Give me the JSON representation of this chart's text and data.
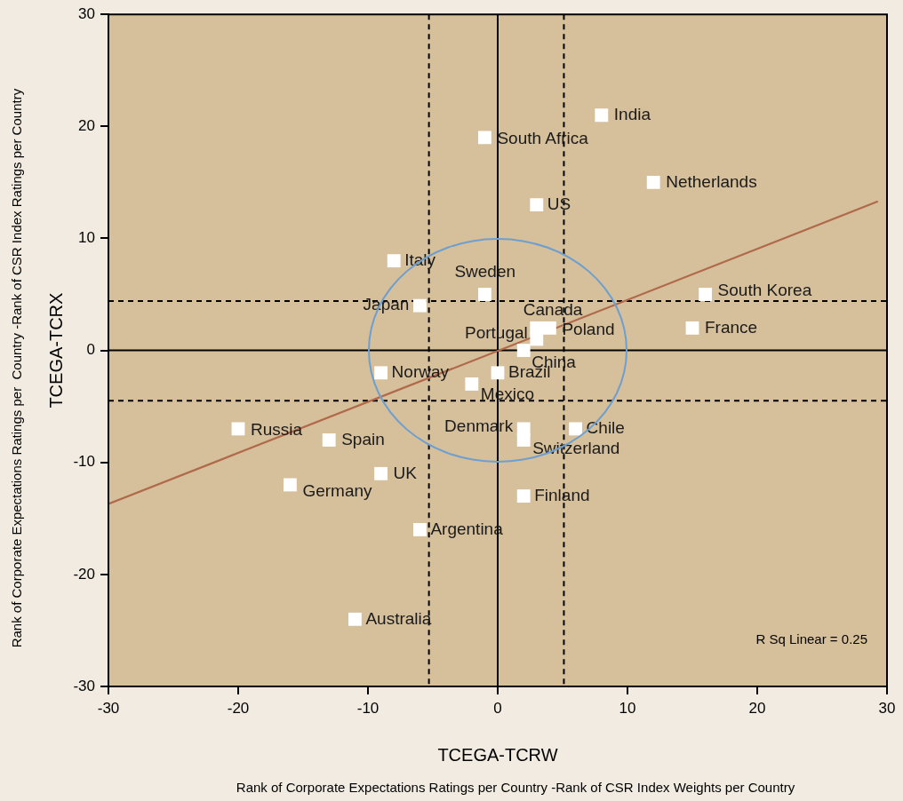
{
  "chart_data": {
    "type": "scatter",
    "xlabel": "TCEGA-TCRW",
    "ylabel": "TCEGA-TCRX",
    "xlim": [
      -30,
      30
    ],
    "xticks": [
      -30,
      -20,
      -10,
      0,
      10,
      20,
      30
    ],
    "ylim": [
      -30,
      30
    ],
    "yticks": [
      -30,
      -20,
      -10,
      0,
      10,
      20,
      30
    ],
    "grid": false,
    "legend": false,
    "marker": "square",
    "series": [
      {
        "name": "India",
        "color": "#ffffff",
        "x": [
          8
        ],
        "values": [
          21
        ]
      },
      {
        "name": "South Africa",
        "color": "#ffffff",
        "x": [
          -1
        ],
        "values": [
          19
        ]
      },
      {
        "name": "Netherlands",
        "color": "#ffffff",
        "x": [
          12
        ],
        "values": [
          15
        ]
      },
      {
        "name": "US",
        "color": "#ffffff",
        "x": [
          3
        ],
        "values": [
          13
        ]
      },
      {
        "name": "Italy",
        "color": "#ffffff",
        "x": [
          -8
        ],
        "values": [
          8
        ]
      },
      {
        "name": "Sweden",
        "color": "#ffffff",
        "x": [
          -1
        ],
        "values": [
          5
        ]
      },
      {
        "name": "South Korea",
        "color": "#ffffff",
        "x": [
          16
        ],
        "values": [
          5
        ]
      },
      {
        "name": "Japan",
        "color": "#ffffff",
        "x": [
          -6
        ],
        "values": [
          4
        ]
      },
      {
        "name": "Canada",
        "color": "#ffffff",
        "x": [
          3
        ],
        "values": [
          2
        ]
      },
      {
        "name": "Poland",
        "color": "#ffffff",
        "x": [
          4
        ],
        "values": [
          2
        ]
      },
      {
        "name": "France",
        "color": "#ffffff",
        "x": [
          15
        ],
        "values": [
          2
        ]
      },
      {
        "name": "Portugal",
        "color": "#ffffff",
        "x": [
          3
        ],
        "values": [
          1
        ]
      },
      {
        "name": "China",
        "color": "#ffffff",
        "x": [
          2
        ],
        "values": [
          0
        ]
      },
      {
        "name": "Norway",
        "color": "#ffffff",
        "x": [
          -9
        ],
        "values": [
          -2
        ]
      },
      {
        "name": "Brazil",
        "color": "#ffffff",
        "x": [
          0
        ],
        "values": [
          -2
        ]
      },
      {
        "name": "Mexico",
        "color": "#ffffff",
        "x": [
          -2
        ],
        "values": [
          -3
        ]
      },
      {
        "name": "Russia",
        "color": "#ffffff",
        "x": [
          -20
        ],
        "values": [
          -7
        ]
      },
      {
        "name": "Denmark",
        "color": "#ffffff",
        "x": [
          2
        ],
        "values": [
          -7
        ]
      },
      {
        "name": "Chile",
        "color": "#ffffff",
        "x": [
          6
        ],
        "values": [
          -7
        ]
      },
      {
        "name": "Spain",
        "color": "#ffffff",
        "x": [
          -13
        ],
        "values": [
          -8
        ]
      },
      {
        "name": "Switzerland",
        "color": "#ffffff",
        "x": [
          2
        ],
        "values": [
          -8
        ]
      },
      {
        "name": "UK",
        "color": "#ffffff",
        "x": [
          -9
        ],
        "values": [
          -11
        ]
      },
      {
        "name": "Germany",
        "color": "#ffffff",
        "x": [
          -16
        ],
        "values": [
          -12
        ]
      },
      {
        "name": "Finland",
        "color": "#ffffff",
        "x": [
          2
        ],
        "values": [
          -13
        ]
      },
      {
        "name": "Argentina",
        "color": "#ffffff",
        "x": [
          -6
        ],
        "values": [
          -16
        ]
      },
      {
        "name": "Australia",
        "color": "#ffffff",
        "x": [
          -11
        ],
        "values": [
          -24
        ]
      },
      {
        "type": "line",
        "color": "#b0694a",
        "x": [
          -30,
          29.3
        ],
        "values": [
          -13.7,
          13.3
        ],
        "marker": "none"
      }
    ],
    "ref_lines": [
      {
        "axis": "x",
        "value": 0,
        "line_style": "solid",
        "color": "#000000"
      },
      {
        "axis": "y",
        "value": 0,
        "line_style": "solid",
        "color": "#000000"
      },
      {
        "axis": "x",
        "value": -5.3,
        "line_style": "dashed",
        "color": "#000000"
      },
      {
        "axis": "x",
        "value": 5.1,
        "line_style": "dashed",
        "color": "#000000"
      },
      {
        "axis": "y",
        "value": 4.4,
        "line_style": "dashed",
        "color": "#000000"
      },
      {
        "axis": "y",
        "value": -4.5,
        "line_style": "dashed",
        "color": "#000000"
      }
    ],
    "annotations": [
      "R Sq Linear = 0.25",
      "Rank of Corporate Expectations Ratings per  Country -Rank of CSR Index Ratings per Country",
      "Rank of Corporate Expectations Ratings per Country -Rank of CSR Index Weights per Country"
    ]
  }
}
